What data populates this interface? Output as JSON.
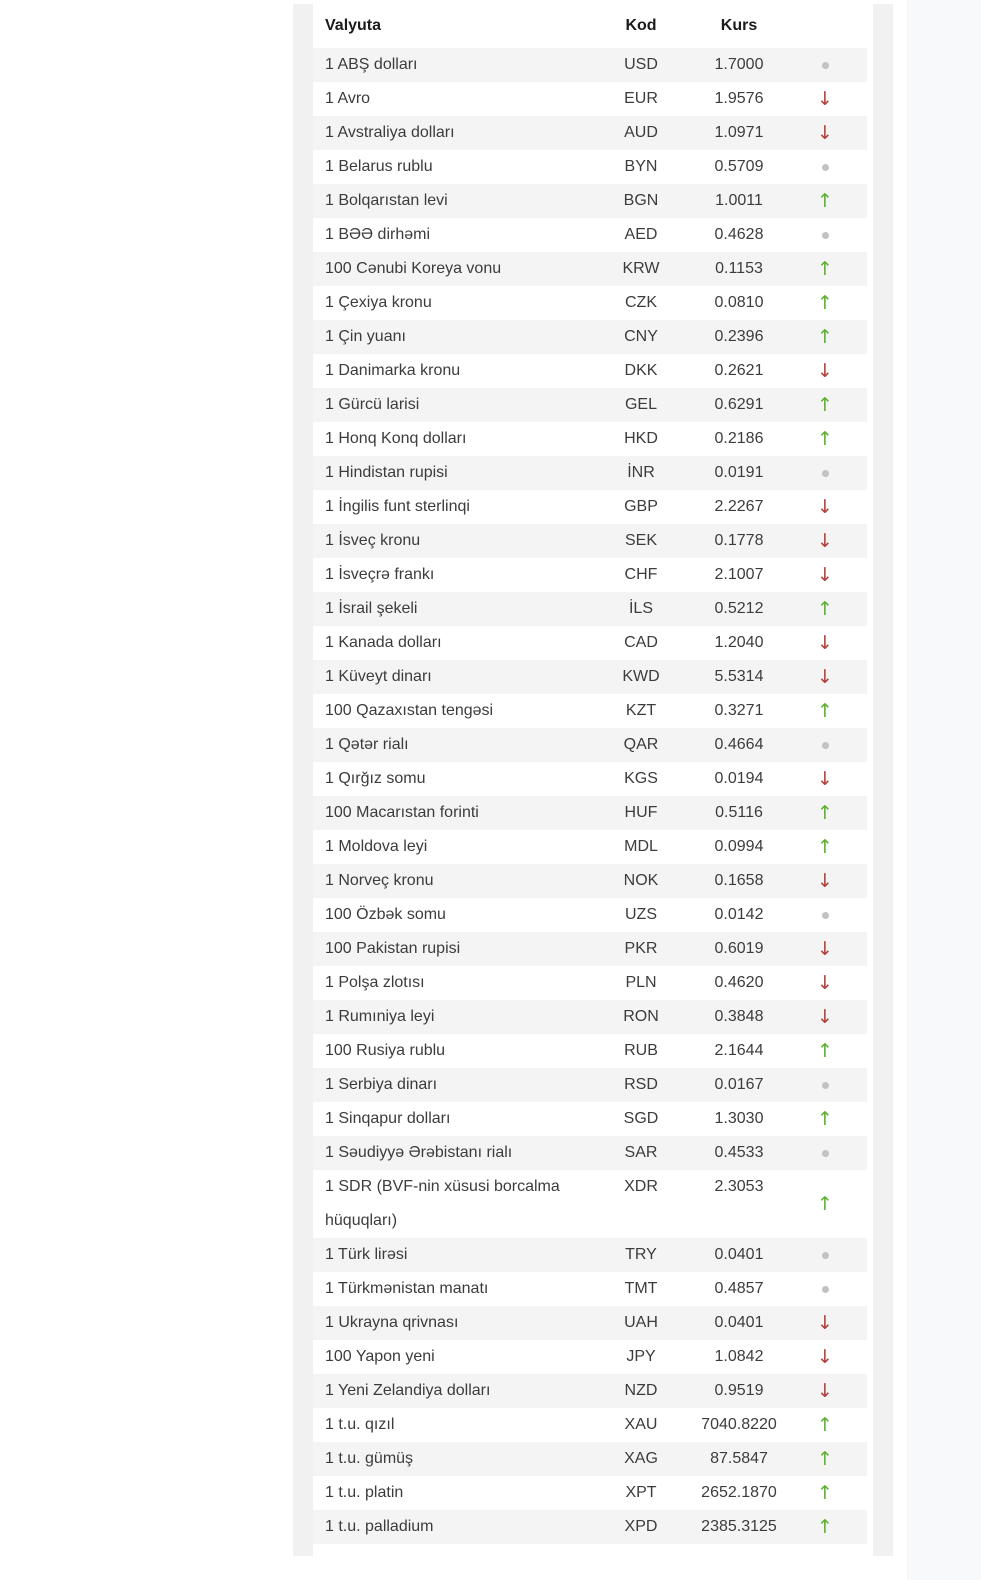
{
  "table": {
    "headers": {
      "currency": "Valyuta",
      "code": "Kod",
      "rate": "Kurs"
    },
    "rows": [
      {
        "currency": "1 ABŞ dolları",
        "code": "USD",
        "rate": "1.7000",
        "trend": "flat"
      },
      {
        "currency": "1 Avro",
        "code": "EUR",
        "rate": "1.9576",
        "trend": "down"
      },
      {
        "currency": "1 Avstraliya dolları",
        "code": "AUD",
        "rate": "1.0971",
        "trend": "down"
      },
      {
        "currency": "1 Belarus rublu",
        "code": "BYN",
        "rate": "0.5709",
        "trend": "flat"
      },
      {
        "currency": "1 Bolqarıstan levi",
        "code": "BGN",
        "rate": "1.0011",
        "trend": "up"
      },
      {
        "currency": "1 BƏƏ dirhəmi",
        "code": "AED",
        "rate": "0.4628",
        "trend": "flat"
      },
      {
        "currency": "100 Cənubi Koreya vonu",
        "code": "KRW",
        "rate": "0.1153",
        "trend": "up"
      },
      {
        "currency": "1 Çexiya kronu",
        "code": "CZK",
        "rate": "0.0810",
        "trend": "up"
      },
      {
        "currency": "1 Çin yuanı",
        "code": "CNY",
        "rate": "0.2396",
        "trend": "up"
      },
      {
        "currency": "1 Danimarka kronu",
        "code": "DKK",
        "rate": "0.2621",
        "trend": "down"
      },
      {
        "currency": "1 Gürcü larisi",
        "code": "GEL",
        "rate": "0.6291",
        "trend": "up"
      },
      {
        "currency": "1 Honq Konq dolları",
        "code": "HKD",
        "rate": "0.2186",
        "trend": "up"
      },
      {
        "currency": "1 Hindistan rupisi",
        "code": "İNR",
        "rate": "0.0191",
        "trend": "flat"
      },
      {
        "currency": "1 İngilis funt sterlinqi",
        "code": "GBP",
        "rate": "2.2267",
        "trend": "down"
      },
      {
        "currency": "1 İsveç kronu",
        "code": "SEK",
        "rate": "0.1778",
        "trend": "down"
      },
      {
        "currency": "1 İsveçrə frankı",
        "code": "CHF",
        "rate": "2.1007",
        "trend": "down"
      },
      {
        "currency": "1 İsrail şekeli",
        "code": "İLS",
        "rate": "0.5212",
        "trend": "up"
      },
      {
        "currency": "1 Kanada dolları",
        "code": "CAD",
        "rate": "1.2040",
        "trend": "down"
      },
      {
        "currency": "1 Küveyt dinarı",
        "code": "KWD",
        "rate": "5.5314",
        "trend": "down"
      },
      {
        "currency": "100 Qazaxıstan tengəsi",
        "code": "KZT",
        "rate": "0.3271",
        "trend": "up"
      },
      {
        "currency": "1 Qətər rialı",
        "code": "QAR",
        "rate": "0.4664",
        "trend": "flat"
      },
      {
        "currency": "1 Qırğız somu",
        "code": "KGS",
        "rate": "0.0194",
        "trend": "down"
      },
      {
        "currency": "100 Macarıstan forinti",
        "code": "HUF",
        "rate": "0.5116",
        "trend": "up"
      },
      {
        "currency": "1 Moldova leyi",
        "code": "MDL",
        "rate": "0.0994",
        "trend": "up"
      },
      {
        "currency": "1 Norveç kronu",
        "code": "NOK",
        "rate": "0.1658",
        "trend": "down"
      },
      {
        "currency": "100 Özbək somu",
        "code": "UZS",
        "rate": "0.0142",
        "trend": "flat"
      },
      {
        "currency": "100 Pakistan rupisi",
        "code": "PKR",
        "rate": "0.6019",
        "trend": "down"
      },
      {
        "currency": "1 Polşa zlotısı",
        "code": "PLN",
        "rate": "0.4620",
        "trend": "down"
      },
      {
        "currency": "1 Rumıniya leyi",
        "code": "RON",
        "rate": "0.3848",
        "trend": "down"
      },
      {
        "currency": "100 Rusiya rublu",
        "code": "RUB",
        "rate": "2.1644",
        "trend": "up"
      },
      {
        "currency": "1 Serbiya dinarı",
        "code": "RSD",
        "rate": "0.0167",
        "trend": "flat"
      },
      {
        "currency": "1 Sinqapur dolları",
        "code": "SGD",
        "rate": "1.3030",
        "trend": "up"
      },
      {
        "currency": "1 Səudiyyə Ərəbistanı rialı",
        "code": "SAR",
        "rate": "0.4533",
        "trend": "flat"
      },
      {
        "currency": "1 SDR (BVF-nin xüsusi borcalma hüquqları)",
        "code": "XDR",
        "rate": "2.3053",
        "trend": "up"
      },
      {
        "currency": "1 Türk lirəsi",
        "code": "TRY",
        "rate": "0.0401",
        "trend": "flat"
      },
      {
        "currency": "1 Türkmənistan manatı",
        "code": "TMT",
        "rate": "0.4857",
        "trend": "flat"
      },
      {
        "currency": "1 Ukrayna qrivnası",
        "code": "UAH",
        "rate": "0.0401",
        "trend": "down"
      },
      {
        "currency": "100 Yapon yeni",
        "code": "JPY",
        "rate": "1.0842",
        "trend": "down"
      },
      {
        "currency": "1 Yeni Zelandiya dolları",
        "code": "NZD",
        "rate": "0.9519",
        "trend": "down"
      },
      {
        "currency": "1 t.u. qızıl",
        "code": "XAU",
        "rate": "7040.8220",
        "trend": "up"
      },
      {
        "currency": "1 t.u. gümüş",
        "code": "XAG",
        "rate": "87.5847",
        "trend": "up"
      },
      {
        "currency": "1 t.u. platin",
        "code": "XPT",
        "rate": "2652.1870",
        "trend": "up"
      },
      {
        "currency": "1 t.u. palladium",
        "code": "XPD",
        "rate": "2385.3125",
        "trend": "up"
      }
    ]
  },
  "icons": {
    "up": "↑",
    "down": "↓",
    "flat": "dot"
  },
  "colors": {
    "trend_up": "#5bb12f",
    "trend_down": "#b2413d",
    "trend_flat": "#c2c2c2",
    "row_stripe": "#f4f4f5",
    "gutter": "#f1f1f2",
    "right_panel": "#f8f9fa",
    "text": "#3c3c3c",
    "header_text": "#1b1b1b"
  }
}
